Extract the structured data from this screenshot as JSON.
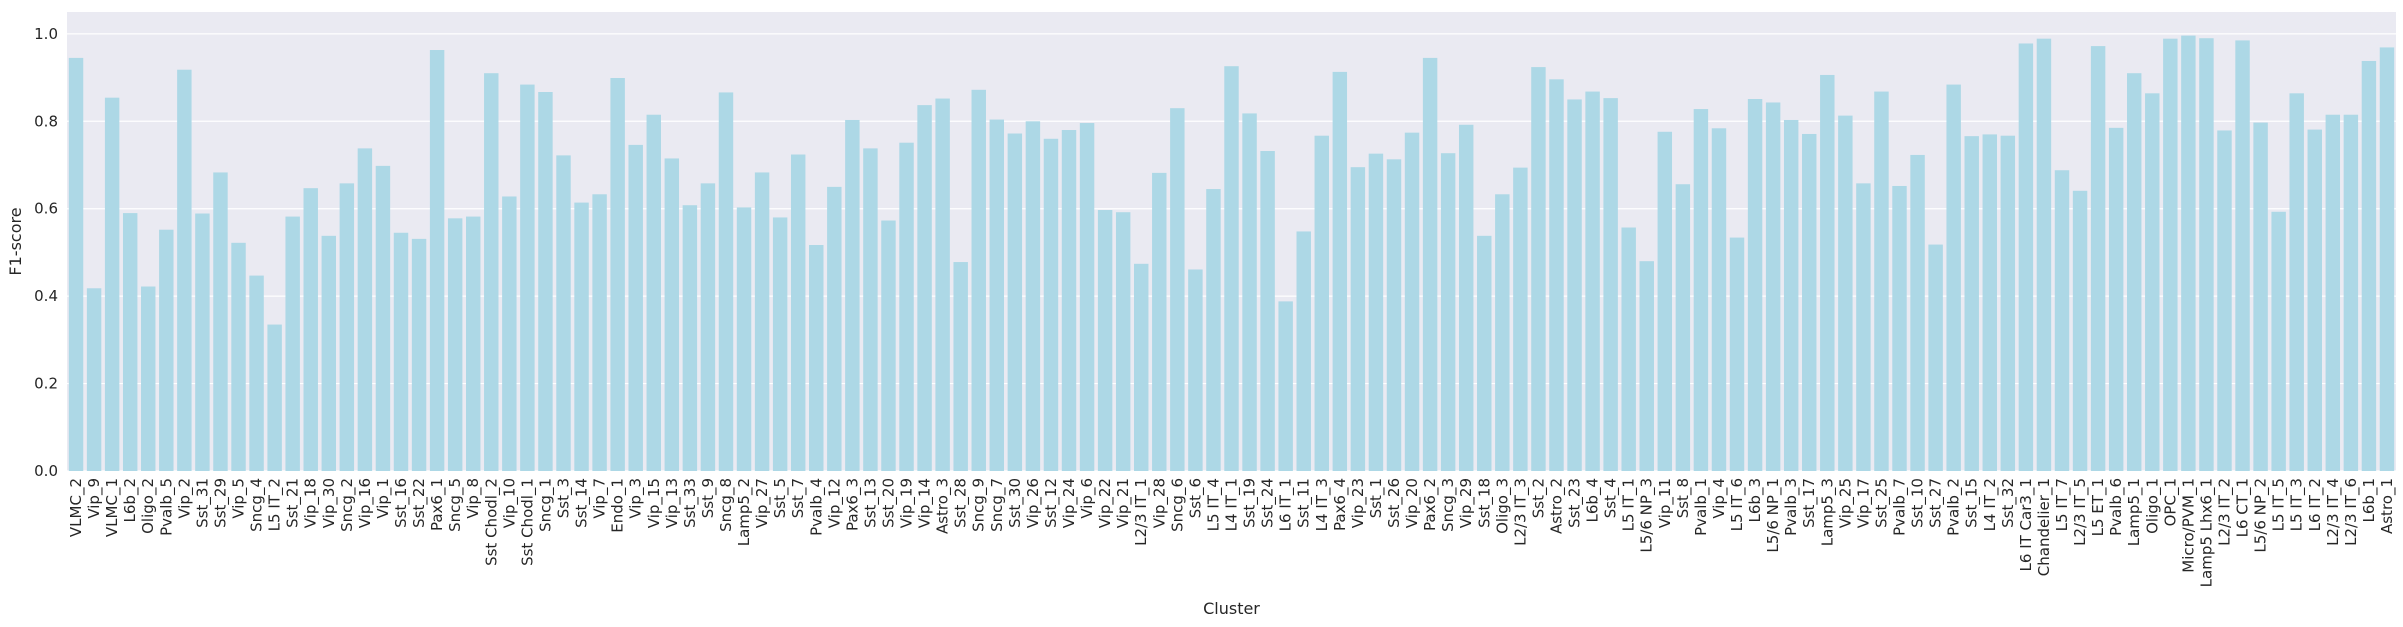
{
  "chart_data": {
    "type": "bar",
    "xlabel": "Cluster",
    "ylabel": "F1-score",
    "ylim": [
      0,
      1.05
    ],
    "yticks": [
      "0.0",
      "0.2",
      "0.4",
      "0.6",
      "0.8",
      "1.0"
    ],
    "grid": true,
    "bar_color": "#add8e6",
    "background_color": "#eaeaf2",
    "grid_color": "#ffffff",
    "categories": [
      "VLMC_2",
      "Vip_9",
      "VLMC_1",
      "L6b_2",
      "Oligo_2",
      "Pvalb_5",
      "Vip_2",
      "Sst_31",
      "Sst_29",
      "Vip_5",
      "Sncg_4",
      "L5 IT_2",
      "Sst_21",
      "Vip_18",
      "Vip_30",
      "Sncg_2",
      "Vip_16",
      "Vip_1",
      "Sst_16",
      "Sst_22",
      "Pax6_1",
      "Sncg_5",
      "Vip_8",
      "Sst Chodl_2",
      "Vip_10",
      "Sst Chodl_1",
      "Sncg_1",
      "Sst_3",
      "Sst_14",
      "Vip_7",
      "Endo_1",
      "Vip_3",
      "Vip_15",
      "Vip_13",
      "Sst_33",
      "Sst_9",
      "Sncg_8",
      "Lamp5_2",
      "Vip_27",
      "Sst_5",
      "Sst_7",
      "Pvalb_4",
      "Vip_12",
      "Pax6_3",
      "Sst_13",
      "Sst_20",
      "Vip_19",
      "Vip_14",
      "Astro_3",
      "Sst_28",
      "Sncg_9",
      "Sncg_7",
      "Sst_30",
      "Vip_26",
      "Sst_12",
      "Vip_24",
      "Vip_6",
      "Vip_22",
      "Vip_21",
      "L2/3 IT_1",
      "Vip_28",
      "Sncg_6",
      "Sst_6",
      "L5 IT_4",
      "L4 IT_1",
      "Sst_19",
      "Sst_24",
      "L6 IT_1",
      "Sst_11",
      "L4 IT_3",
      "Pax6_4",
      "Vip_23",
      "Sst_1",
      "Sst_26",
      "Vip_20",
      "Pax6_2",
      "Sncg_3",
      "Vip_29",
      "Sst_18",
      "Oligo_3",
      "L2/3 IT_3",
      "Sst_2",
      "Astro_2",
      "Sst_23",
      "L6b_4",
      "Sst_4",
      "L5 IT_1",
      "L5/6 NP_3",
      "Vip_11",
      "Sst_8",
      "Pvalb_1",
      "Vip_4",
      "L5 IT_6",
      "L6b_3",
      "L5/6 NP_1",
      "Pvalb_3",
      "Sst_17",
      "Lamp5_3",
      "Vip_25",
      "Vip_17",
      "Sst_25",
      "Pvalb_7",
      "Sst_10",
      "Sst_27",
      "Pvalb_2",
      "Sst_15",
      "L4 IT_2",
      "Sst_32",
      "L6 IT Car3_1",
      "Chandelier_1",
      "L5 IT_7",
      "L2/3 IT_5",
      "L5 ET_1",
      "Pvalb_6",
      "Lamp5_1",
      "Oligo_1",
      "OPC_1",
      "Micro/PVM_1",
      "Lamp5 Lhx6_1",
      "L2/3 IT_2",
      "L6 CT_1",
      "L5/6 NP_2",
      "L5 IT_5",
      "L5 IT_3",
      "L6 IT_2",
      "L2/3 IT_4",
      "L2/3 IT_6",
      "L6b_1",
      "Astro_1"
    ],
    "values": [
      0.945,
      0.418,
      0.854,
      0.59,
      0.422,
      0.552,
      0.918,
      0.589,
      0.683,
      0.522,
      0.447,
      0.335,
      0.582,
      0.647,
      0.538,
      0.658,
      0.738,
      0.698,
      0.545,
      0.531,
      0.963,
      0.578,
      0.582,
      0.91,
      0.628,
      0.884,
      0.867,
      0.722,
      0.614,
      0.633,
      0.899,
      0.746,
      0.815,
      0.715,
      0.608,
      0.658,
      0.866,
      0.603,
      0.683,
      0.58,
      0.724,
      0.517,
      0.65,
      0.803,
      0.738,
      0.573,
      0.751,
      0.837,
      0.852,
      0.478,
      0.872,
      0.804,
      0.772,
      0.8,
      0.76,
      0.78,
      0.796,
      0.597,
      0.592,
      0.474,
      0.682,
      0.83,
      0.461,
      0.645,
      0.926,
      0.818,
      0.732,
      0.388,
      0.548,
      0.767,
      0.913,
      0.695,
      0.726,
      0.713,
      0.774,
      0.945,
      0.727,
      0.792,
      0.538,
      0.633,
      0.694,
      0.924,
      0.896,
      0.85,
      0.868,
      0.853,
      0.557,
      0.48,
      0.776,
      0.656,
      0.828,
      0.784,
      0.534,
      0.851,
      0.843,
      0.803,
      0.771,
      0.906,
      0.813,
      0.658,
      0.868,
      0.652,
      0.723,
      0.518,
      0.884,
      0.766,
      0.77,
      0.767,
      0.978,
      0.989,
      0.688,
      0.641,
      0.972,
      0.785,
      0.91,
      0.864,
      0.989,
      0.996,
      0.99,
      0.779,
      0.985,
      0.797,
      0.593,
      0.864,
      0.781,
      0.815,
      0.815,
      0.938,
      0.969
    ]
  }
}
